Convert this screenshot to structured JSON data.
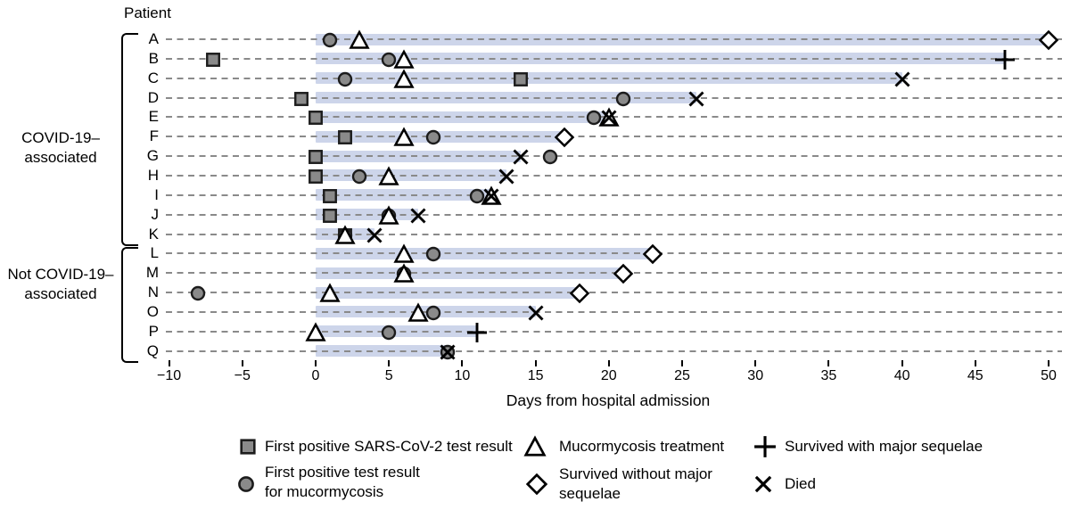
{
  "page": {
    "patient_header": "Patient"
  },
  "axis": {
    "label": "Days from hospital admission",
    "tick_labels": [
      "−10",
      "−5",
      "0",
      "5",
      "10",
      "15",
      "20",
      "25",
      "30",
      "35",
      "40",
      "45",
      "50"
    ]
  },
  "groups": [
    {
      "label": [
        "COVID-19–",
        "associated"
      ],
      "patient_ids": [
        "A",
        "B",
        "C",
        "D",
        "E",
        "F",
        "G",
        "H",
        "I",
        "J",
        "K"
      ]
    },
    {
      "label": [
        "Not COVID-19–",
        "associated"
      ],
      "patient_ids": [
        "L",
        "M",
        "N",
        "O",
        "P",
        "Q"
      ]
    }
  ],
  "legend": {
    "square": "First positive SARS-CoV-2 test result",
    "circle": [
      "First positive test result",
      "for mucormycosis"
    ],
    "triangle": "Mucormycosis treatment",
    "diamond": [
      "Survived without major",
      "sequelae"
    ],
    "plus": "Survived with major sequelae",
    "x": "Died"
  },
  "colors": {
    "hospital_stay_band": "#cdd5ea",
    "dashed_line": "#8a8a8a",
    "filled_marker_fill": "#8a8a8a",
    "filled_marker_stroke": "#1c1c1c",
    "open_marker_stroke": "#000000",
    "open_marker_fill": "#ffffff"
  },
  "chart_data": {
    "type": "timeline",
    "title": "",
    "xlabel": "Days from hospital admission",
    "ylabel": "Patient",
    "xlim": [
      -10,
      50
    ],
    "xticks": [
      -10,
      -5,
      0,
      5,
      10,
      15,
      20,
      25,
      30,
      35,
      40,
      45,
      50
    ],
    "grid": "dashed horizontal row lines",
    "legend_position": "bottom",
    "marker_meanings": {
      "square": "First positive SARS-CoV-2 test result",
      "circle": "First positive test result for mucormycosis",
      "triangle": "Mucormycosis treatment",
      "diamond": "Survived without major sequelae",
      "plus": "Survived with major sequelae",
      "x": "Died"
    },
    "band_meaning": "Hospital stay (days from admission)",
    "patients": [
      {
        "id": "A",
        "group": "COVID-19–associated",
        "hospital_stay": [
          0,
          50
        ],
        "sars_cov2_test_day": null,
        "mucormycosis_test_day": 1,
        "treatment_day": 3,
        "outcome": "survived_without_major_sequelae",
        "outcome_day": 50
      },
      {
        "id": "B",
        "group": "COVID-19–associated",
        "hospital_stay": [
          0,
          47
        ],
        "sars_cov2_test_day": -7,
        "mucormycosis_test_day": 5,
        "treatment_day": 6,
        "outcome": "survived_with_major_sequelae",
        "outcome_day": 47
      },
      {
        "id": "C",
        "group": "COVID-19–associated",
        "hospital_stay": [
          0,
          40
        ],
        "sars_cov2_test_day": 14,
        "mucormycosis_test_day": 2,
        "treatment_day": 6,
        "outcome": "died",
        "outcome_day": 40
      },
      {
        "id": "D",
        "group": "COVID-19–associated",
        "hospital_stay": [
          0,
          26
        ],
        "sars_cov2_test_day": -1,
        "mucormycosis_test_day": 21,
        "treatment_day": null,
        "outcome": "died",
        "outcome_day": 26
      },
      {
        "id": "E",
        "group": "COVID-19–associated",
        "hospital_stay": [
          0,
          20
        ],
        "sars_cov2_test_day": 0,
        "mucormycosis_test_day": 19,
        "treatment_day": 20,
        "outcome": "died",
        "outcome_day": 20
      },
      {
        "id": "F",
        "group": "COVID-19–associated",
        "hospital_stay": [
          0,
          17
        ],
        "sars_cov2_test_day": 2,
        "mucormycosis_test_day": 8,
        "treatment_day": 6,
        "outcome": "survived_without_major_sequelae",
        "outcome_day": 17
      },
      {
        "id": "G",
        "group": "COVID-19–associated",
        "hospital_stay": [
          0,
          14
        ],
        "sars_cov2_test_day": 0,
        "mucormycosis_test_day": 16,
        "treatment_day": null,
        "outcome": "died",
        "outcome_day": 14
      },
      {
        "id": "H",
        "group": "COVID-19–associated",
        "hospital_stay": [
          0,
          13
        ],
        "sars_cov2_test_day": 0,
        "mucormycosis_test_day": 3,
        "treatment_day": 5,
        "outcome": "died",
        "outcome_day": 13
      },
      {
        "id": "I",
        "group": "COVID-19–associated",
        "hospital_stay": [
          0,
          12
        ],
        "sars_cov2_test_day": 1,
        "mucormycosis_test_day": 11,
        "treatment_day": 12,
        "outcome": "died",
        "outcome_day": 12
      },
      {
        "id": "J",
        "group": "COVID-19–associated",
        "hospital_stay": [
          0,
          7
        ],
        "sars_cov2_test_day": 1,
        "mucormycosis_test_day": 5,
        "treatment_day": 5,
        "outcome": "died",
        "outcome_day": 7
      },
      {
        "id": "K",
        "group": "COVID-19–associated",
        "hospital_stay": [
          0,
          4
        ],
        "sars_cov2_test_day": 2,
        "mucormycosis_test_day": 2,
        "treatment_day": 2,
        "outcome": "died",
        "outcome_day": 4
      },
      {
        "id": "L",
        "group": "Not COVID-19–associated",
        "hospital_stay": [
          0,
          23
        ],
        "sars_cov2_test_day": null,
        "mucormycosis_test_day": 8,
        "treatment_day": 6,
        "outcome": "survived_without_major_sequelae",
        "outcome_day": 23
      },
      {
        "id": "M",
        "group": "Not COVID-19–associated",
        "hospital_stay": [
          0,
          21
        ],
        "sars_cov2_test_day": null,
        "mucormycosis_test_day": 6,
        "treatment_day": 6,
        "outcome": "survived_without_major_sequelae",
        "outcome_day": 21
      },
      {
        "id": "N",
        "group": "Not COVID-19–associated",
        "hospital_stay": [
          0,
          18
        ],
        "sars_cov2_test_day": null,
        "mucormycosis_test_day": -8,
        "treatment_day": 1,
        "outcome": "survived_without_major_sequelae",
        "outcome_day": 18
      },
      {
        "id": "O",
        "group": "Not COVID-19–associated",
        "hospital_stay": [
          0,
          15
        ],
        "sars_cov2_test_day": null,
        "mucormycosis_test_day": 8,
        "treatment_day": 7,
        "outcome": "died",
        "outcome_day": 15
      },
      {
        "id": "P",
        "group": "Not COVID-19–associated",
        "hospital_stay": [
          0,
          11
        ],
        "sars_cov2_test_day": null,
        "mucormycosis_test_day": 5,
        "treatment_day": 0,
        "outcome": "survived_with_major_sequelae",
        "outcome_day": 11
      },
      {
        "id": "Q",
        "group": "Not COVID-19–associated",
        "hospital_stay": [
          0,
          9
        ],
        "sars_cov2_test_day": null,
        "mucormycosis_test_day": 9,
        "treatment_day": null,
        "outcome": "died",
        "outcome_day": 9
      }
    ]
  }
}
